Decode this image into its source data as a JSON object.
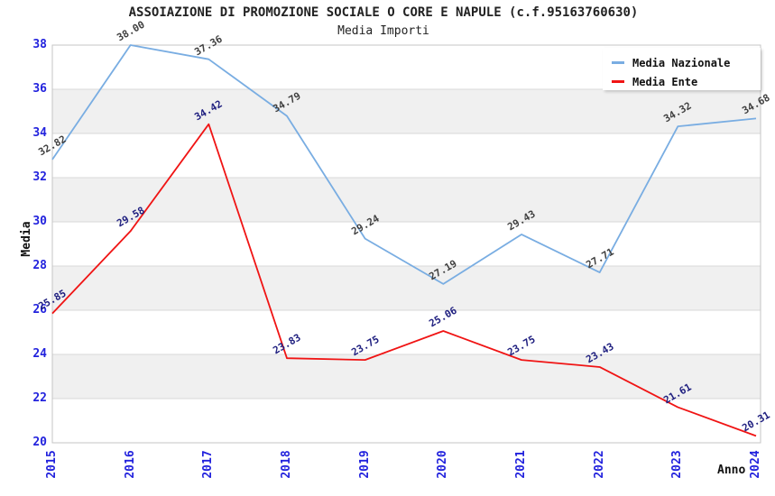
{
  "chart_data": {
    "type": "line",
    "title": "ASSOIAZIONE DI PROMOZIONE SOCIALE O CORE E NAPULE (c.f.95163760630)",
    "subtitle": "Media Importi",
    "xlabel": "Anno",
    "ylabel": "Media",
    "x": [
      "2015",
      "2016",
      "2017",
      "2018",
      "2019",
      "2020",
      "2021",
      "2022",
      "2023",
      "2024"
    ],
    "series": [
      {
        "name": "Media Nazionale",
        "color": "#79ade2",
        "label_color": "#404040",
        "values": [
          32.82,
          38.0,
          37.36,
          34.79,
          29.24,
          27.19,
          29.43,
          27.71,
          34.32,
          34.68
        ]
      },
      {
        "name": "Media Ente",
        "color": "#f01414",
        "label_color": "#202080",
        "values": [
          25.85,
          29.58,
          34.42,
          23.83,
          23.75,
          25.06,
          23.75,
          23.43,
          21.61,
          20.31
        ]
      }
    ],
    "ylim": [
      20,
      38
    ],
    "y_ticks": [
      38,
      36,
      34,
      32,
      30,
      28,
      26,
      24,
      22,
      20
    ],
    "tick_label_color": "#2222dd",
    "grid": "horizontal-bands-alternating",
    "band_color": "#f0f0f0",
    "gridline_color": "#d9d9d9",
    "border_color": "#c5c5c5",
    "legend_position": "top-right"
  }
}
